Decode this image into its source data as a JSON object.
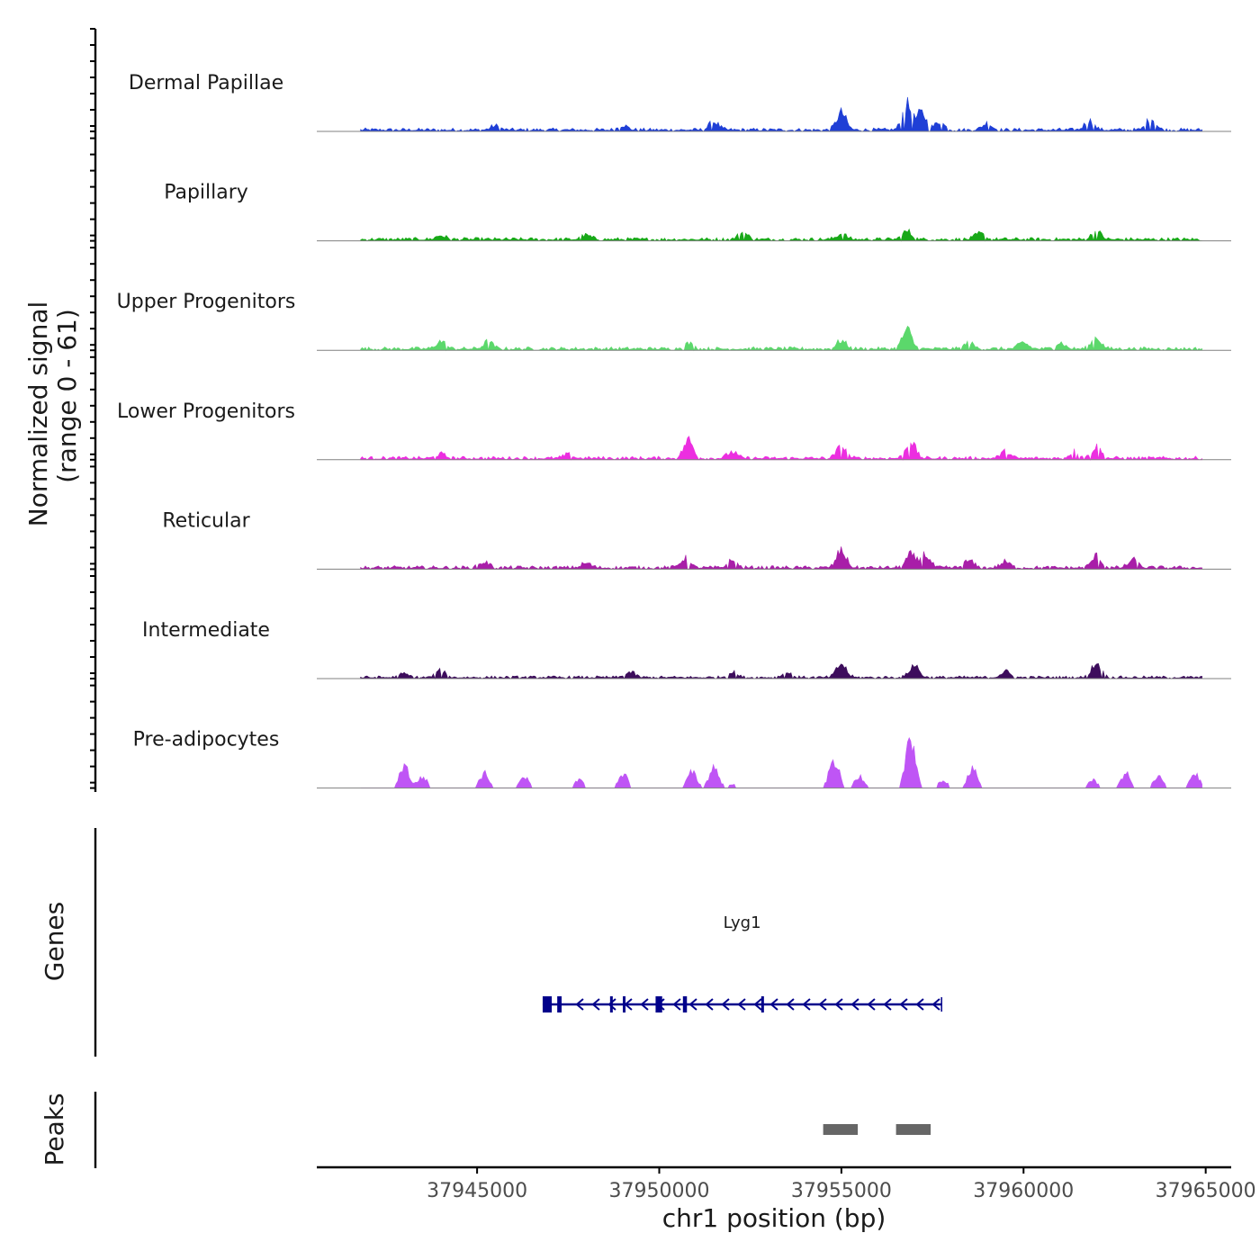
{
  "chart_data": {
    "type": "area",
    "title": "",
    "ylabel_line1": "Normalized signal",
    "ylabel_line2": "(range 0 - 61)",
    "yrange": [
      0,
      61
    ],
    "xlabel": "chr1 position (bp)",
    "xlim": [
      37940600,
      37965700
    ],
    "xticks": [
      37945000,
      37950000,
      37955000,
      37960000,
      37965000
    ],
    "xtick_labels": [
      "37945000",
      "37950000",
      "37955000",
      "37960000",
      "37965000"
    ],
    "tracks": [
      {
        "name": "Dermal Papillae",
        "color": "#1f3fd6",
        "style": "area",
        "base": 5,
        "peaks": [
          [
            37955000,
            30
          ],
          [
            37956800,
            44
          ],
          [
            37957200,
            30
          ],
          [
            37961800,
            16
          ],
          [
            37963500,
            20
          ],
          [
            37951500,
            14
          ],
          [
            37957700,
            14
          ],
          [
            37959000,
            12
          ],
          [
            37949000,
            8
          ],
          [
            37945500,
            7
          ]
        ]
      },
      {
        "name": "Papillary",
        "color": "#18a818",
        "style": "area",
        "base": 5,
        "peaks": [
          [
            37956800,
            14
          ],
          [
            37962000,
            14
          ],
          [
            37952300,
            12
          ],
          [
            37955000,
            10
          ],
          [
            37958800,
            10
          ],
          [
            37944000,
            7
          ],
          [
            37948000,
            7
          ]
        ]
      },
      {
        "name": "Upper Progenitors",
        "color": "#5bd86b",
        "style": "area",
        "base": 5,
        "peaks": [
          [
            37956800,
            33
          ],
          [
            37962000,
            20
          ],
          [
            37944000,
            13
          ],
          [
            37945300,
            12
          ],
          [
            37955000,
            14
          ],
          [
            37960000,
            11
          ],
          [
            37961000,
            11
          ],
          [
            37958500,
            10
          ],
          [
            37950800,
            9
          ]
        ]
      },
      {
        "name": "Lower Progenitors",
        "color": "#ec2ee0",
        "style": "area",
        "base": 5,
        "peaks": [
          [
            37950800,
            32
          ],
          [
            37956900,
            30
          ],
          [
            37955000,
            20
          ],
          [
            37962000,
            20
          ],
          [
            37961400,
            12
          ],
          [
            37952000,
            11
          ],
          [
            37959500,
            11
          ],
          [
            37944000,
            7
          ],
          [
            37947500,
            6
          ]
        ]
      },
      {
        "name": "Reticular",
        "color": "#a81ea8",
        "style": "area",
        "base": 5,
        "peaks": [
          [
            37955000,
            30
          ],
          [
            37956900,
            22
          ],
          [
            37957300,
            23
          ],
          [
            37962000,
            20
          ],
          [
            37950700,
            16
          ],
          [
            37952000,
            12
          ],
          [
            37958500,
            12
          ],
          [
            37963000,
            13
          ],
          [
            37945200,
            10
          ],
          [
            37948000,
            8
          ],
          [
            37959500,
            10
          ]
        ]
      },
      {
        "name": "Intermediate",
        "color": "#3d0d5c",
        "style": "area",
        "base": 4,
        "peaks": [
          [
            37955000,
            24
          ],
          [
            37957000,
            22
          ],
          [
            37962000,
            25
          ],
          [
            37944000,
            11
          ],
          [
            37949200,
            9
          ],
          [
            37952000,
            9
          ],
          [
            37959500,
            10
          ],
          [
            37953500,
            8
          ],
          [
            37943000,
            6
          ]
        ]
      },
      {
        "name": "Pre-adipocytes",
        "color": "#bf55f5",
        "style": "bars",
        "base": 0,
        "peaks": [
          [
            37956900,
            100
          ],
          [
            37954800,
            52
          ],
          [
            37943000,
            42
          ],
          [
            37951500,
            38
          ],
          [
            37958600,
            38
          ],
          [
            37950900,
            28
          ],
          [
            37945200,
            26
          ],
          [
            37962800,
            26
          ],
          [
            37963700,
            20
          ],
          [
            37964700,
            26
          ],
          [
            37946300,
            22
          ],
          [
            37949000,
            26
          ],
          [
            37955500,
            22
          ],
          [
            37947800,
            14
          ],
          [
            37943500,
            20
          ],
          [
            37957800,
            14
          ],
          [
            37961900,
            14
          ],
          [
            37952000,
            8
          ]
        ]
      }
    ],
    "genes": [
      {
        "name": "Lyg1",
        "start": 37946800,
        "end": 37957750,
        "strand": "-",
        "exons": [
          [
            37946800,
            37947050
          ],
          [
            37947200,
            37947320
          ],
          [
            37949900,
            37950080
          ],
          [
            37950650,
            37950760
          ],
          [
            37952800,
            37952860
          ],
          [
            37949000,
            37949040
          ],
          [
            37948650,
            37948690
          ]
        ]
      }
    ],
    "genes_label": "Genes",
    "peaks_label": "Peaks",
    "peak_regions": [
      [
        37954500,
        37955450
      ],
      [
        37956500,
        37957450
      ]
    ],
    "colors": {
      "gene": "#00008b",
      "peak": "#666666",
      "axis": "#000000",
      "baseline": "#808080"
    }
  }
}
